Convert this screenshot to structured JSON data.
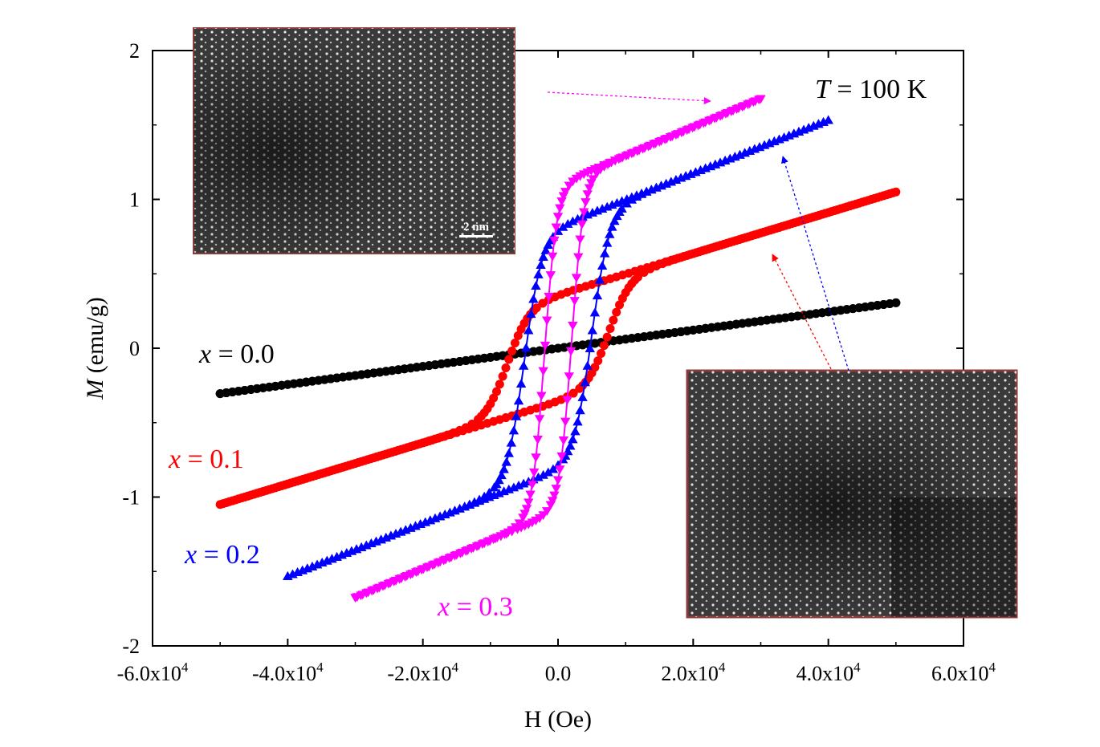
{
  "chart_data": {
    "type": "line",
    "xlabel": "H (Oe)",
    "ylabel_italic": "M",
    "ylabel_rest": " (emu/g)",
    "xlim": [
      -60000,
      60000
    ],
    "ylim": [
      -2,
      2
    ],
    "x_ticks": [
      -60000,
      -40000,
      -20000,
      0,
      20000,
      40000,
      60000
    ],
    "x_tick_labels": [
      {
        "base": "-6.0x10",
        "exp": "4"
      },
      {
        "base": "-4.0x10",
        "exp": "4"
      },
      {
        "base": "-2.0x10",
        "exp": "4"
      },
      {
        "base": "0.0",
        "exp": ""
      },
      {
        "base": "2.0x10",
        "exp": "4"
      },
      {
        "base": "4.0x10",
        "exp": "4"
      },
      {
        "base": "6.0x10",
        "exp": "4"
      }
    ],
    "y_ticks": [
      -2,
      -1,
      0,
      1,
      2
    ],
    "y_tick_labels": [
      "-2",
      "-1",
      "0",
      "1",
      "2"
    ],
    "annotation_temperature": {
      "var": "T",
      "text": " = 100 K"
    },
    "series": [
      {
        "name": "x = 0.0",
        "var": "x",
        "value_text": " = 0.0",
        "color": "#000000",
        "marker": "circle",
        "hmax": 50000,
        "ms": 0.305,
        "hc": 0,
        "chi": 6.1e-06,
        "a": 0,
        "b": 10000
      },
      {
        "name": "x = 0.1",
        "var": "x",
        "value_text": " = 0.1",
        "color": "#ff0000",
        "marker": "circle",
        "hmax": 50000,
        "ms": 1.03,
        "hc": 7500,
        "chi": 1.38e-05,
        "a": 0.36,
        "b": 3200
      },
      {
        "name": "x = 0.2",
        "var": "x",
        "value_text": " = 0.2",
        "color": "#0000ff",
        "marker": "triangle-up",
        "hmax": 40000,
        "ms": 1.5,
        "hc": 5000,
        "chi": 1.78e-05,
        "a": 0.82,
        "b": 2600
      },
      {
        "name": "x = 0.3",
        "var": "x",
        "value_text": " = 0.3",
        "color": "#ff00ff",
        "marker": "triangle-down",
        "hmax": 30000,
        "ms": 1.68,
        "hc": 2000,
        "chi": 1.92e-05,
        "a": 1.1,
        "b": 1800
      }
    ],
    "insets": [
      {
        "name": "top-left",
        "scale_bar": "2 nm"
      },
      {
        "name": "bottom-right",
        "scale_bar": ""
      }
    ],
    "arrow_colors": [
      "#ff00ff",
      "#0000ff",
      "#ff0000"
    ]
  }
}
